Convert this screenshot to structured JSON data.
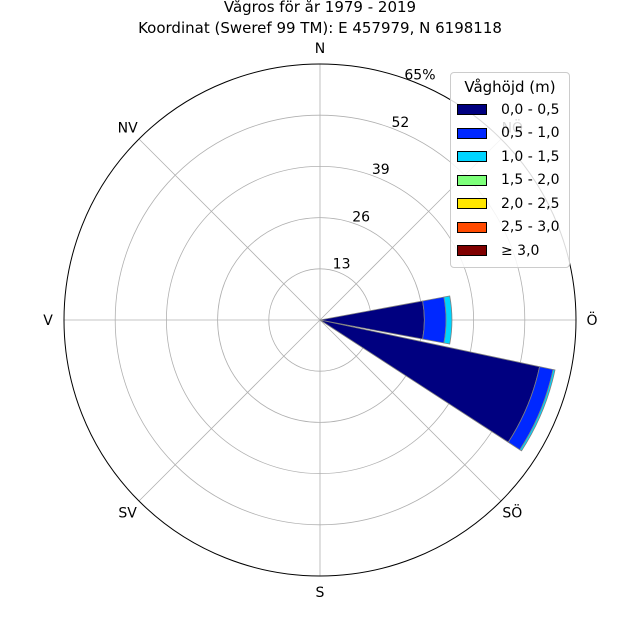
{
  "chart_data": {
    "type": "polar-stacked-bar",
    "title": [
      "Vågros för år 1979 - 2019",
      "Koordinat (Sweref 99 TM): E 457979, N 6198118"
    ],
    "direction_labels": [
      "N",
      "NÖ",
      "Ö",
      "SÖ",
      "S",
      "SV",
      "V",
      "NV"
    ],
    "radial_tick_labels": [
      "13",
      "26",
      "39",
      "52",
      "65%"
    ],
    "radial_max": 65,
    "grid": true,
    "legend": {
      "title": "Våghöjd (m)",
      "placement": "top-right",
      "entries": [
        "0,0 - 0,5",
        "0,5 - 1,0",
        "1,0 - 1,5",
        "1,5 - 2,0",
        "2,0 - 2,5",
        "2,5 - 3,0",
        "≥ 3,0"
      ],
      "colors": [
        "#000080",
        "#0028ff",
        "#00d4ff",
        "#7dff7a",
        "#ffe600",
        "#ff4a00",
        "#800000"
      ]
    },
    "bars": [
      {
        "direction_deg": 90,
        "segments": [
          26.5,
          5.5,
          1.5,
          0,
          0,
          0,
          0
        ]
      },
      {
        "direction_deg": 112.5,
        "segments": [
          57.0,
          3.5,
          0.5,
          0,
          0,
          0,
          0
        ]
      }
    ]
  }
}
